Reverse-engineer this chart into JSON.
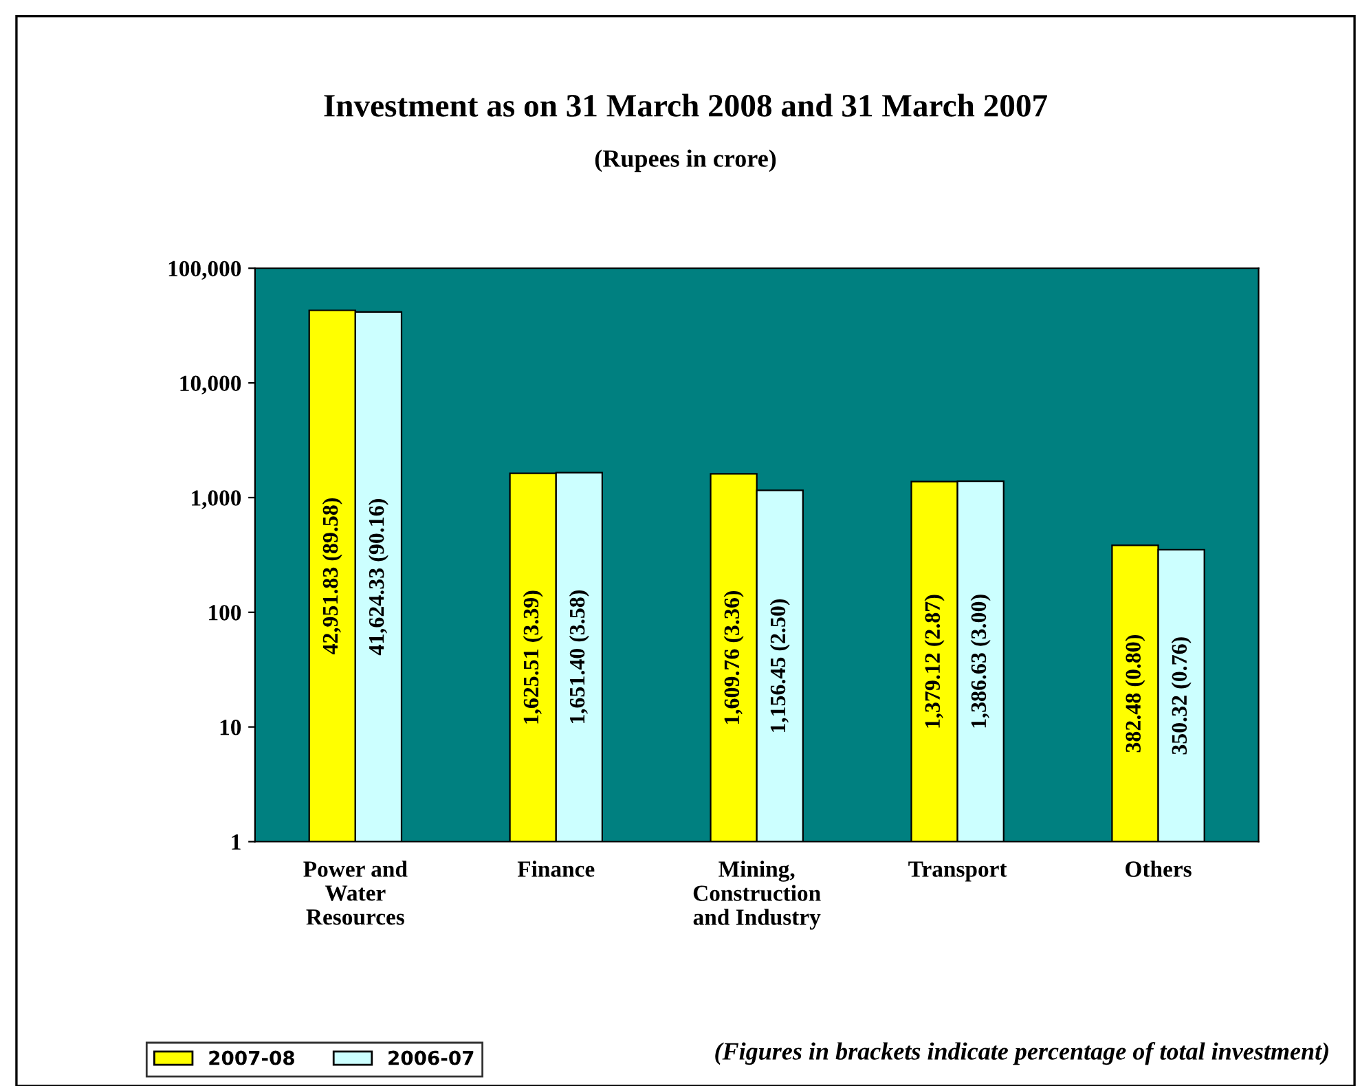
{
  "chart_data": {
    "type": "bar",
    "title": "Investment as on 31 March 2008 and 31 March 2007",
    "subtitle": "(Rupees in crore)",
    "categories": [
      "Power and Water Resources",
      "Finance",
      "Mining, Construction and Industry",
      "Transport",
      "Others"
    ],
    "series": [
      {
        "name": "2007-08",
        "color": "#ffff00",
        "values": [
          42951.83,
          1625.51,
          1609.76,
          1379.12,
          382.48
        ],
        "value_labels": [
          "42,951.83 (89.58)",
          "1,625.51 (3.39)",
          "1,609.76 (3.36)",
          "1,379.12 (2.87)",
          "382.48 (0.80)"
        ]
      },
      {
        "name": "2006-07",
        "color": "#ccffff",
        "values": [
          41624.33,
          1651.4,
          1156.45,
          1386.63,
          350.32
        ],
        "value_labels": [
          "41,624.33 (90.16)",
          "1,651.40 (3.58)",
          "1,156.45 (2.50)",
          "1,386.63 (3.00)",
          "350.32 (0.76)"
        ]
      }
    ],
    "log": "y",
    "ylim": [
      1,
      100000
    ],
    "yticks": [
      {
        "value": 1,
        "label": "1"
      },
      {
        "value": 10,
        "label": "10"
      },
      {
        "value": 100,
        "label": "100"
      },
      {
        "value": 1000,
        "label": "1,000"
      },
      {
        "value": 10000,
        "label": "10,000"
      },
      {
        "value": 100000,
        "label": "100,000"
      }
    ],
    "grid": false,
    "legend": "bottom left",
    "annotations": [
      "(Figures in brackets indicate percentage of total investment)"
    ]
  }
}
